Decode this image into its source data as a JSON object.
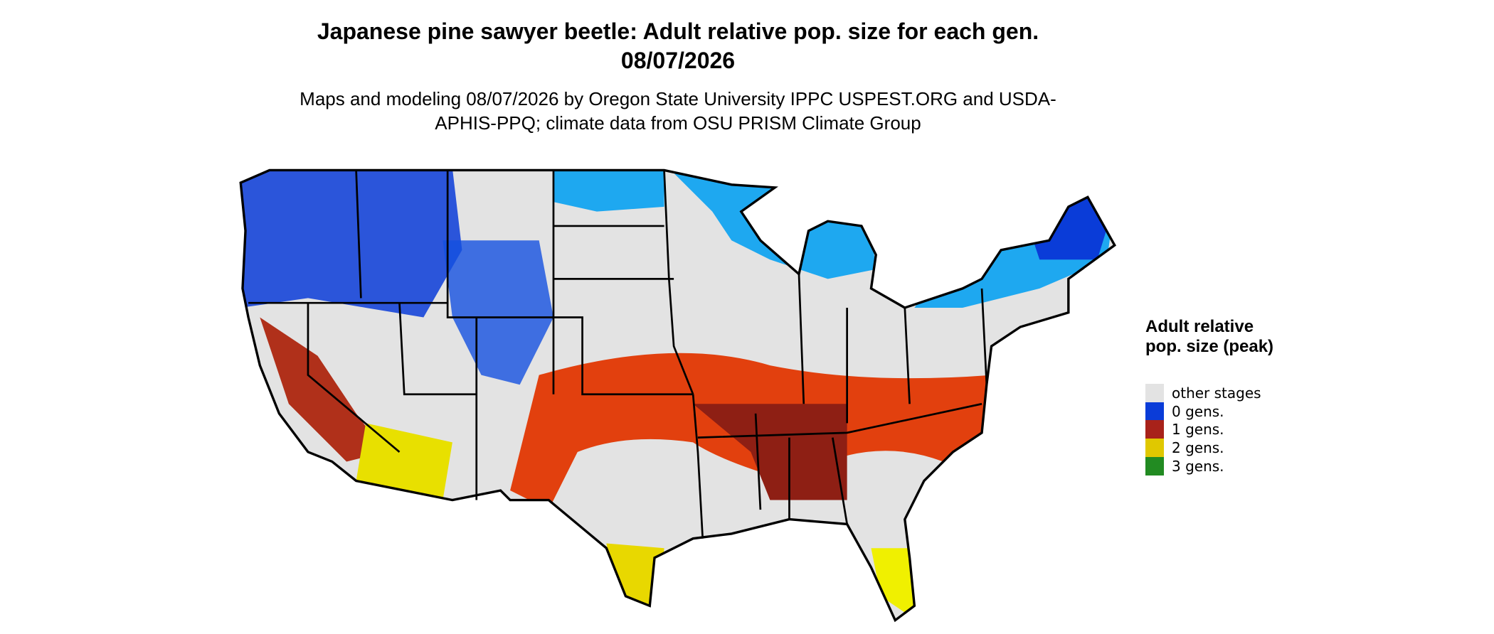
{
  "title": "Japanese pine sawyer beetle: Adult relative pop. size for each gen. 08/07/2026",
  "subtitle": "Maps and modeling 08/07/2026 by Oregon State University IPPC USPEST.ORG and USDA-APHIS-PPQ; climate data from OSU PRISM Climate Group",
  "legend": {
    "title": "Adult relative pop. size (peak)",
    "items": [
      {
        "label": "other stages",
        "color": "#e3e3e3"
      },
      {
        "label": "0 gens.",
        "color": "#0a3cd8"
      },
      {
        "label": "1 gens.",
        "color": "#a8221a"
      },
      {
        "label": "2 gens.",
        "color": "#e0c800"
      },
      {
        "label": "3 gens.",
        "color": "#228b22"
      }
    ]
  }
}
